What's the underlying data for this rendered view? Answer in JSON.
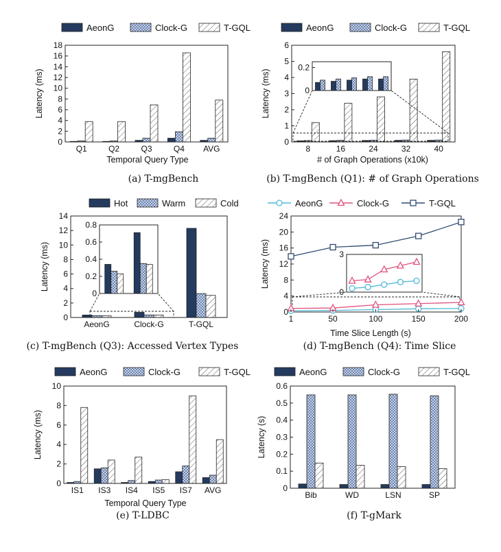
{
  "colors": {
    "aeong": "#243a5e",
    "clockg": "#b9c7e0",
    "tgql": "#ffffff",
    "line_aeong": "#4fb8d8",
    "line_clockg": "#e0507a",
    "line_tgql": "#2f4a73"
  },
  "charts": [
    {
      "id": "a",
      "type": "bar",
      "caption": "(a) T-mgBench",
      "xlabel": "Temporal Query Type",
      "ylabel": "Latency (ms)",
      "ylim": [
        0,
        18
      ],
      "yticks": [
        "0",
        "2",
        "4",
        "6",
        "8",
        "10",
        "12",
        "14",
        "16",
        "18"
      ],
      "legend": [
        "AeonG",
        "Clock-G",
        "T-GQL"
      ],
      "categories": [
        "Q1",
        "Q2",
        "Q3",
        "Q4",
        "AVG"
      ],
      "series": [
        {
          "name": "AeonG",
          "values": [
            0.1,
            0.1,
            0.3,
            0.7,
            0.3
          ]
        },
        {
          "name": "Clock-G",
          "values": [
            0.2,
            0.2,
            0.7,
            1.9,
            0.7
          ]
        },
        {
          "name": "T-GQL",
          "values": [
            3.8,
            3.8,
            6.9,
            16.6,
            7.8
          ]
        }
      ]
    },
    {
      "id": "b",
      "type": "bar",
      "caption": "(b) T-mgBench (Q1): # of Graph Operations",
      "xlabel": "# of Graph Operations (x10k)",
      "ylabel": "Latency (ms)",
      "ylim": [
        0,
        6
      ],
      "yticks": [
        "0",
        "1",
        "2",
        "3",
        "4",
        "5",
        "6"
      ],
      "legend": [
        "AeonG",
        "Clock-G",
        "T-GQL"
      ],
      "categories": [
        "8",
        "16",
        "24",
        "32",
        "40"
      ],
      "series": [
        {
          "name": "AeonG",
          "values": [
            0.07,
            0.08,
            0.09,
            0.1,
            0.1
          ]
        },
        {
          "name": "Clock-G",
          "values": [
            0.09,
            0.1,
            0.11,
            0.12,
            0.12
          ]
        },
        {
          "name": "T-GQL",
          "values": [
            1.2,
            2.4,
            2.8,
            3.9,
            5.6
          ]
        }
      ],
      "inset": {
        "ylim": [
          0,
          0.25
        ],
        "yticks": [
          "0",
          "0.2"
        ],
        "series": [
          {
            "name": "AeonG",
            "values": [
              0.07,
              0.08,
              0.09,
              0.1,
              0.1
            ]
          },
          {
            "name": "Clock-G",
            "values": [
              0.09,
              0.1,
              0.11,
              0.12,
              0.12
            ]
          }
        ]
      }
    },
    {
      "id": "c",
      "type": "bar",
      "caption": "(c) T-mgBench (Q3): Accessed Vertex Types",
      "xlabel": "",
      "ylabel": "Latency (ms)",
      "ylim": [
        0,
        14
      ],
      "yticks": [
        "0",
        "2",
        "4",
        "6",
        "8",
        "10",
        "12",
        "14"
      ],
      "legend": [
        "Hot",
        "Warm",
        "Cold"
      ],
      "categories": [
        "AeonG",
        "Clock-G",
        "T-GQL"
      ],
      "series": [
        {
          "name": "Hot",
          "values": [
            0.34,
            0.71,
            12.3
          ]
        },
        {
          "name": "Warm",
          "values": [
            0.26,
            0.35,
            3.3
          ]
        },
        {
          "name": "Cold",
          "values": [
            0.23,
            0.34,
            3.05
          ]
        }
      ],
      "inset": {
        "ylim": [
          0,
          0.8
        ],
        "yticks": [
          "0",
          "0.2",
          "0.4",
          "0.6",
          "0.8"
        ],
        "categories": [
          "AeonG",
          "Clock-G"
        ],
        "series": [
          {
            "name": "Hot",
            "values": [
              0.34,
              0.71
            ]
          },
          {
            "name": "Warm",
            "values": [
              0.26,
              0.35
            ]
          },
          {
            "name": "Cold",
            "values": [
              0.23,
              0.34
            ]
          }
        ]
      }
    },
    {
      "id": "d",
      "type": "line",
      "caption": "(d) T-mgBench (Q4): Time Slice",
      "xlabel": "Time Slice Length (s)",
      "ylabel": "Latency (ms)",
      "xlim": [
        1,
        200
      ],
      "ylim": [
        0,
        24
      ],
      "xticks": [
        "1",
        "50",
        "100",
        "150",
        "200"
      ],
      "yticks": [
        "0",
        "4",
        "8",
        "12",
        "16",
        "20",
        "24"
      ],
      "legend": [
        "AeonG",
        "Clock-G",
        "T-GQL"
      ],
      "x": [
        1,
        50,
        100,
        150,
        200
      ],
      "series": [
        {
          "name": "AeonG",
          "marker": "circle",
          "values": [
            0.3,
            0.4,
            0.6,
            0.8,
            0.9
          ]
        },
        {
          "name": "Clock-G",
          "marker": "triangle",
          "values": [
            0.9,
            1.0,
            1.8,
            2.1,
            2.4
          ]
        },
        {
          "name": "T-GQL",
          "marker": "square",
          "values": [
            13.9,
            16.2,
            16.7,
            19.0,
            22.5
          ]
        }
      ],
      "inset": {
        "ylim": [
          0,
          3
        ],
        "yticks": [
          "0",
          "3"
        ],
        "series": [
          {
            "name": "AeonG",
            "values": [
              0.3,
              0.4,
              0.6,
              0.8,
              0.9
            ]
          },
          {
            "name": "Clock-G",
            "values": [
              0.9,
              1.0,
              1.8,
              2.1,
              2.4
            ]
          }
        ]
      }
    },
    {
      "id": "e",
      "type": "bar",
      "caption": "(e) T-LDBC",
      "xlabel": "Temporal Query Type",
      "ylabel": "Latency (ms)",
      "ylim": [
        0,
        10
      ],
      "yticks": [
        "0",
        "2",
        "4",
        "6",
        "8",
        "10"
      ],
      "legend": [
        "AeonG",
        "Clock-G",
        "T-GQL"
      ],
      "categories": [
        "IS1",
        "IS3",
        "IS4",
        "IS5",
        "IS7",
        "AVG"
      ],
      "series": [
        {
          "name": "AeonG",
          "values": [
            0.1,
            1.5,
            0.1,
            0.2,
            1.2,
            0.6
          ]
        },
        {
          "name": "Clock-G",
          "values": [
            0.2,
            1.6,
            0.3,
            0.35,
            1.8,
            0.85
          ]
        },
        {
          "name": "T-GQL",
          "values": [
            7.8,
            2.4,
            2.7,
            0.4,
            9.0,
            4.5
          ]
        }
      ]
    },
    {
      "id": "f",
      "type": "bar",
      "caption": "(f) T-gMark",
      "xlabel": "",
      "ylabel": "Latency (s)",
      "ylim": [
        0,
        0.6
      ],
      "yticks": [
        "0",
        "0.1",
        "0.2",
        "0.3",
        "0.4",
        "0.5",
        "0.6"
      ],
      "legend": [
        "AeonG",
        "Clock-G",
        "T-GQL"
      ],
      "categories": [
        "Bib",
        "WD",
        "LSN",
        "SP"
      ],
      "series": [
        {
          "name": "AeonG",
          "values": [
            0.025,
            0.022,
            0.022,
            0.022
          ]
        },
        {
          "name": "Clock-G",
          "values": [
            0.548,
            0.548,
            0.552,
            0.543
          ]
        },
        {
          "name": "T-GQL",
          "values": [
            0.148,
            0.135,
            0.127,
            0.115
          ]
        }
      ]
    }
  ]
}
